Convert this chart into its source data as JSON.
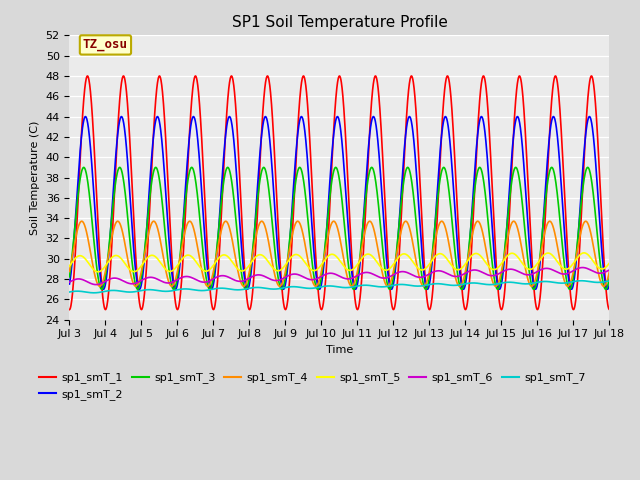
{
  "title": "SP1 Soil Temperature Profile",
  "xlabel": "Time",
  "ylabel": "Soil Temperature (C)",
  "ylim": [
    24,
    52
  ],
  "ytick_values": [
    24,
    26,
    28,
    30,
    32,
    34,
    36,
    38,
    40,
    42,
    44,
    46,
    48,
    50,
    52
  ],
  "xtick_labels": [
    "Jul 3",
    "Jul 4",
    "Jul 5",
    "Jul 6",
    "Jul 7",
    "Jul 8",
    "Jul 9",
    "Jul 10",
    "Jul 11",
    "Jul 12",
    "Jul 13",
    "Jul 14",
    "Jul 15",
    "Jul 16",
    "Jul 17",
    "Jul 18"
  ],
  "series": [
    {
      "name": "sp1_smT_1",
      "color": "#FF0000",
      "lw": 1.2,
      "amp": 11.5,
      "base": 36.5,
      "phase": 0.0,
      "trend": 0.0
    },
    {
      "name": "sp1_smT_2",
      "color": "#0000FF",
      "lw": 1.2,
      "amp": 8.5,
      "base": 35.5,
      "phase": 0.35,
      "trend": 0.0
    },
    {
      "name": "sp1_smT_3",
      "color": "#00CC00",
      "lw": 1.2,
      "amp": 6.0,
      "base": 33.0,
      "phase": 0.65,
      "trend": 0.0
    },
    {
      "name": "sp1_smT_4",
      "color": "#FF8C00",
      "lw": 1.2,
      "amp": 3.2,
      "base": 30.5,
      "phase": 1.0,
      "trend": 0.0
    },
    {
      "name": "sp1_smT_5",
      "color": "#FFFF00",
      "lw": 1.2,
      "amp": 0.8,
      "base": 29.5,
      "phase": 1.3,
      "trend": 0.3
    },
    {
      "name": "sp1_smT_6",
      "color": "#CC00CC",
      "lw": 1.2,
      "amp": 0.3,
      "base": 27.7,
      "phase": 1.6,
      "trend": 1.2
    },
    {
      "name": "sp1_smT_7",
      "color": "#00CCCC",
      "lw": 1.2,
      "amp": 0.1,
      "base": 26.7,
      "phase": 1.9,
      "trend": 1.1
    }
  ],
  "annotation_text": "TZ_osu",
  "annotation_color": "#880000",
  "annotation_bg": "#FFFFCC",
  "annotation_border": "#BBAA00",
  "background_color": "#D9D9D9",
  "plot_bg": "#EBEBEB",
  "grid_color": "#FFFFFF",
  "title_fontsize": 11,
  "axis_fontsize": 8,
  "tick_fontsize": 8,
  "legend_fontsize": 8
}
